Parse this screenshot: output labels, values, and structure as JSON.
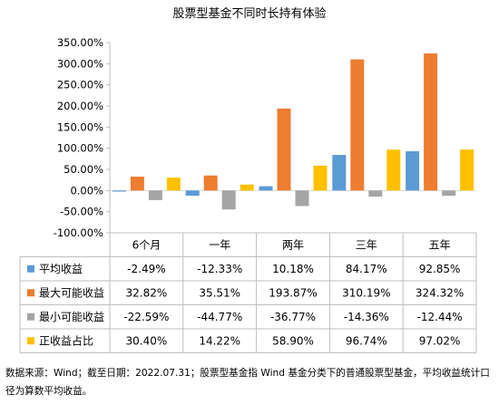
{
  "chart_data": {
    "type": "bar",
    "title": "股票型基金不同时长持有体验",
    "categories": [
      "6个月",
      "一年",
      "两年",
      "三年",
      "五年"
    ],
    "ylim": [
      -100,
      350
    ],
    "yticks": [
      -100,
      -50,
      0,
      50,
      100,
      150,
      200,
      250,
      300,
      350
    ],
    "ytick_labels": [
      "-100.00%",
      "-50.00%",
      "0.00%",
      "50.00%",
      "100.00%",
      "150.00%",
      "200.00%",
      "250.00%",
      "300.00%",
      "350.00%"
    ],
    "grid": false,
    "legend": "data-table",
    "series": [
      {
        "name": "平均收益",
        "color": "#5B9BD5",
        "values": [
          -2.49,
          -12.33,
          10.18,
          84.17,
          92.85
        ],
        "labels": [
          "-2.49%",
          "-12.33%",
          "10.18%",
          "84.17%",
          "92.85%"
        ]
      },
      {
        "name": "最大可能收益",
        "color": "#ED7D31",
        "values": [
          32.82,
          35.51,
          193.87,
          310.19,
          324.32
        ],
        "labels": [
          "32.82%",
          "35.51%",
          "193.87%",
          "310.19%",
          "324.32%"
        ]
      },
      {
        "name": "最小可能收益",
        "color": "#A5A5A5",
        "values": [
          -22.59,
          -44.77,
          -36.77,
          -14.36,
          -12.44
        ],
        "labels": [
          "-22.59%",
          "-44.77%",
          "-36.77%",
          "-14.36%",
          "-12.44%"
        ]
      },
      {
        "name": "正收益占比",
        "color": "#FFC000",
        "values": [
          30.4,
          14.22,
          58.9,
          96.74,
          97.02
        ],
        "labels": [
          "30.40%",
          "14.22%",
          "58.90%",
          "96.74%",
          "97.02%"
        ]
      }
    ]
  },
  "caption": "数据来源：Wind；截至日期：2022.07.31；股票型基金指 Wind 基金分类下的普通股票型基金，平均收益统计口径为算数平均收益。"
}
